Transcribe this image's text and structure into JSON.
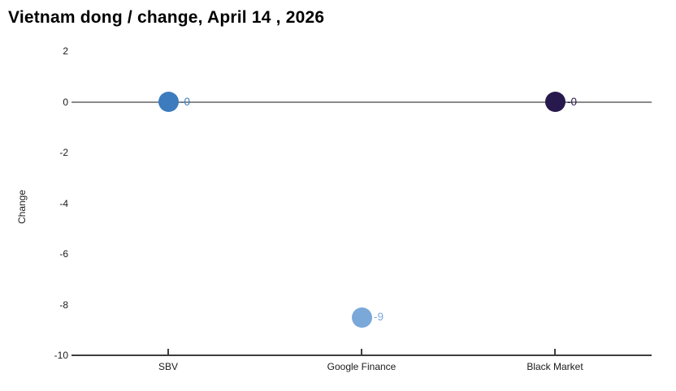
{
  "chart_data": {
    "type": "scatter",
    "title": "Vietnam dong / change, April 14 , 2026",
    "ylabel": "Change",
    "xlabel": "",
    "categories": [
      "SBV",
      "Google Finance",
      "Black Market"
    ],
    "points": [
      {
        "category": "SBV",
        "value": 0,
        "label": "-0",
        "color": "#3c7cbe"
      },
      {
        "category": "Google Finance",
        "value": -8.5,
        "label": "-9",
        "color": "#7aa8d9"
      },
      {
        "category": "Black Market",
        "value": 0,
        "label": "-0",
        "color": "#27194d"
      }
    ],
    "ylim": [
      -10,
      2
    ],
    "yticks": [
      2,
      0,
      -2,
      -4,
      -6,
      -8,
      -10
    ],
    "grid_lines": [
      0
    ],
    "legend": "none",
    "grid": "horizontal reference line at 0 only; solid bottom axis with category ticks"
  },
  "colors": {
    "zero_line": "#8a8a8a",
    "axis_line": "#3d3d3d",
    "text": "#1a1a1a",
    "title_text": "#000000"
  }
}
